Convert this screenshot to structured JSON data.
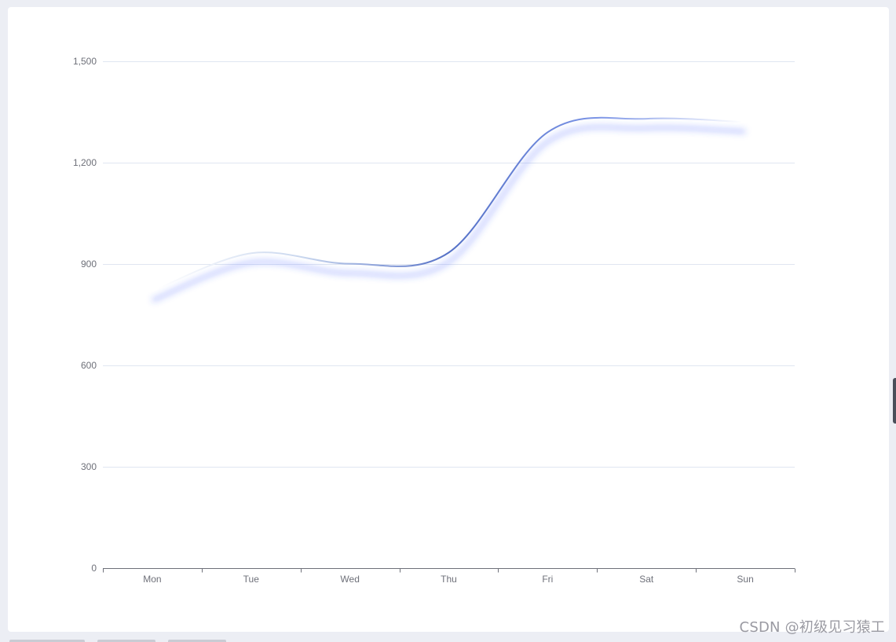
{
  "chart_data": {
    "type": "line",
    "smooth": true,
    "categories": [
      "Mon",
      "Tue",
      "Wed",
      "Thu",
      "Fri",
      "Sat",
      "Sun"
    ],
    "series": [
      {
        "values": [
          820,
          932,
          901,
          934,
          1290,
          1330,
          1320
        ]
      }
    ],
    "ylim": [
      0,
      1500
    ],
    "yticks": [
      "0",
      "300",
      "600",
      "900",
      "1,200",
      "1,500"
    ],
    "ytick_values": [
      0,
      300,
      600,
      900,
      1200,
      1500
    ],
    "grid": true,
    "legend": "none",
    "line_gradient": [
      "#ffffff",
      "#c8d6ee",
      "#5470c6",
      "#7b94e6",
      "#ffffff"
    ],
    "shadow_color": "#3b5bff",
    "axis_color": "#6e7079",
    "grid_color": "#e0e6f1",
    "label_color": "#6e7079"
  },
  "watermark": "CSDN @初级见习猿工"
}
